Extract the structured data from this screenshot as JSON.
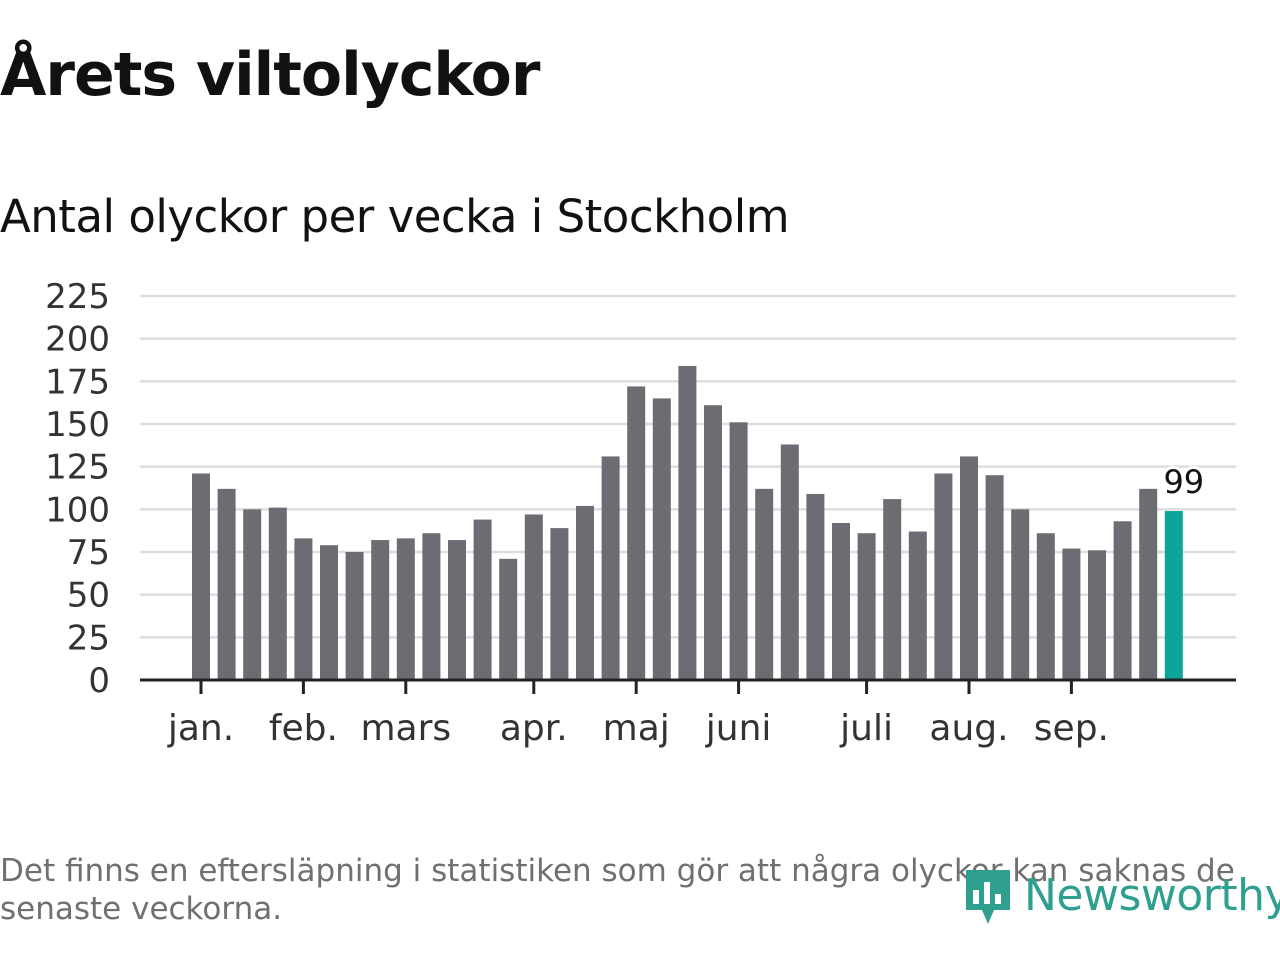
{
  "title": "Årets viltolyckor",
  "subtitle": "Antal olyckor per vecka i Stockholm",
  "footnote": "Det finns en eftersläpning i statistiken som gör att några olyckor kan saknas de senaste veckorna.",
  "brand": {
    "name": "Newsworthy",
    "color": "#2f9f90",
    "icon": "bar-chart-pin-icon"
  },
  "colors": {
    "bar": "#6d6c72",
    "highlight": "#0ca59a",
    "grid": "#dddddd",
    "axis": "#222222",
    "tick_text": "#333333"
  },
  "chart_data": {
    "type": "bar",
    "title": "Antal olyckor per vecka i Stockholm",
    "xlabel": "",
    "ylabel": "",
    "ylim": [
      0,
      225
    ],
    "yticks": [
      "0",
      "25",
      "50",
      "75",
      "100",
      "125",
      "150",
      "175",
      "200",
      "225"
    ],
    "grid": true,
    "values": [
      121,
      112,
      100,
      101,
      83,
      79,
      75,
      82,
      83,
      86,
      82,
      94,
      71,
      97,
      89,
      102,
      131,
      172,
      165,
      184,
      161,
      151,
      112,
      138,
      109,
      92,
      86,
      106,
      87,
      121,
      131,
      120,
      100,
      86,
      77,
      76,
      93,
      112,
      99
    ],
    "highlight_index": 38,
    "highlight_label": "99",
    "months": [
      {
        "label": "jan.",
        "week_index": 0
      },
      {
        "label": "feb.",
        "week_index": 4
      },
      {
        "label": "mars",
        "week_index": 8
      },
      {
        "label": "apr.",
        "week_index": 13
      },
      {
        "label": "maj",
        "week_index": 17
      },
      {
        "label": "juni",
        "week_index": 21
      },
      {
        "label": "juli",
        "week_index": 26
      },
      {
        "label": "aug.",
        "week_index": 30
      },
      {
        "label": "sep.",
        "week_index": 34
      }
    ]
  }
}
